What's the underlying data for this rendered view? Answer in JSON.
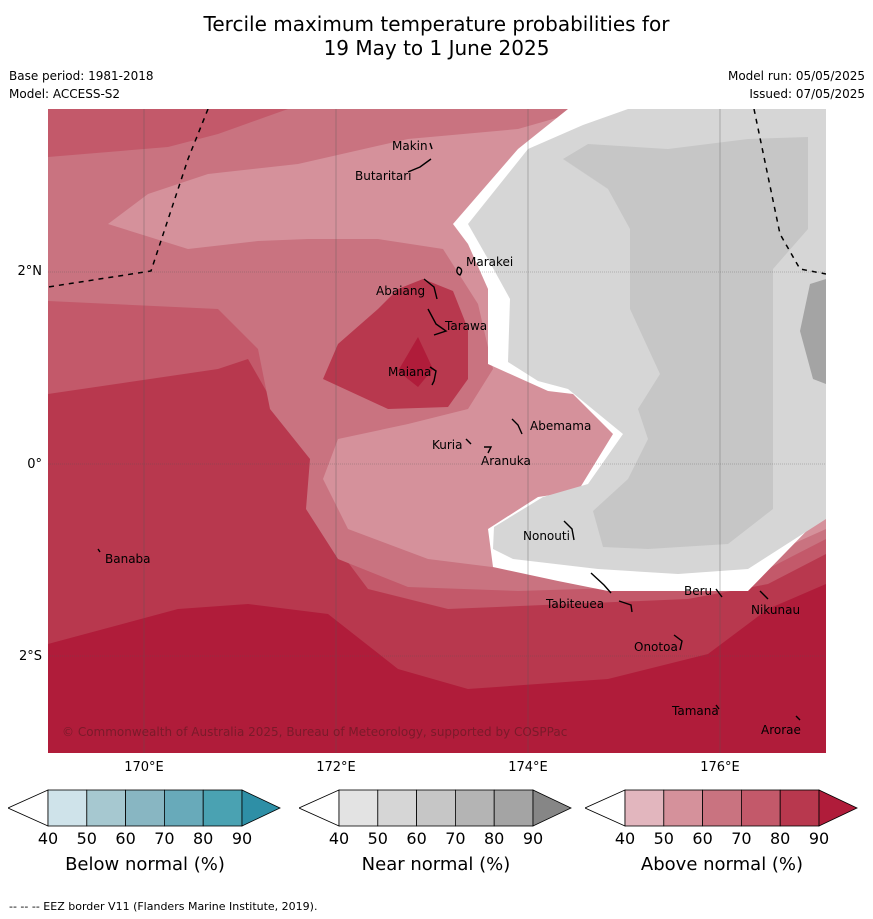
{
  "title": {
    "line1": "Tercile maximum temperature probabilities for",
    "line2": "19 May to 1 June 2025"
  },
  "meta_left": {
    "base_period": "Base period: 1981-2018",
    "model": "Model: ACCESS-S2"
  },
  "meta_right": {
    "model_run": "Model run: 05/05/2025",
    "issued": "Issued: 07/05/2025"
  },
  "map": {
    "lat_labels": [
      "2°N",
      "0°",
      "2°S"
    ],
    "lon_labels": [
      "170°E",
      "172°E",
      "174°E",
      "176°E"
    ],
    "places": [
      "Makin",
      "Butaritari",
      "Marakei",
      "Abaiang",
      "Tarawa",
      "Maiana",
      "Abemama",
      "Kuria",
      "Aranuka",
      "Banaba",
      "Nonouti",
      "Beru",
      "Tabiteuea",
      "Nikunau",
      "Onotoa",
      "Tamana",
      "Arorae"
    ],
    "credit": "© Commonwealth of Australia 2025, Bureau of Meteorology, supported by COSPPac"
  },
  "colorbars": [
    {
      "title": "Below normal (%)",
      "ticks": [
        "40",
        "50",
        "60",
        "70",
        "80",
        "90"
      ],
      "colors": [
        "#ffffff",
        "#cfe3ea",
        "#a6c8d0",
        "#88b6c2",
        "#68aaba",
        "#4aa2b2",
        "#2e8fa6"
      ]
    },
    {
      "title": "Near normal (%)",
      "ticks": [
        "40",
        "50",
        "60",
        "70",
        "80",
        "90"
      ],
      "colors": [
        "#ffffff",
        "#e3e3e3",
        "#d6d6d6",
        "#c6c6c6",
        "#b4b4b4",
        "#a4a4a4",
        "#868686"
      ]
    },
    {
      "title": "Above normal (%)",
      "ticks": [
        "40",
        "50",
        "60",
        "70",
        "80",
        "90"
      ],
      "colors": [
        "#ffffff",
        "#e2b6be",
        "#d5919b",
        "#c97380",
        "#c3596a",
        "#b8384e",
        "#b01c3a"
      ]
    }
  ],
  "footer": "--  --  -- EEZ border V11 (Flanders Marine Institute, 2019)."
}
